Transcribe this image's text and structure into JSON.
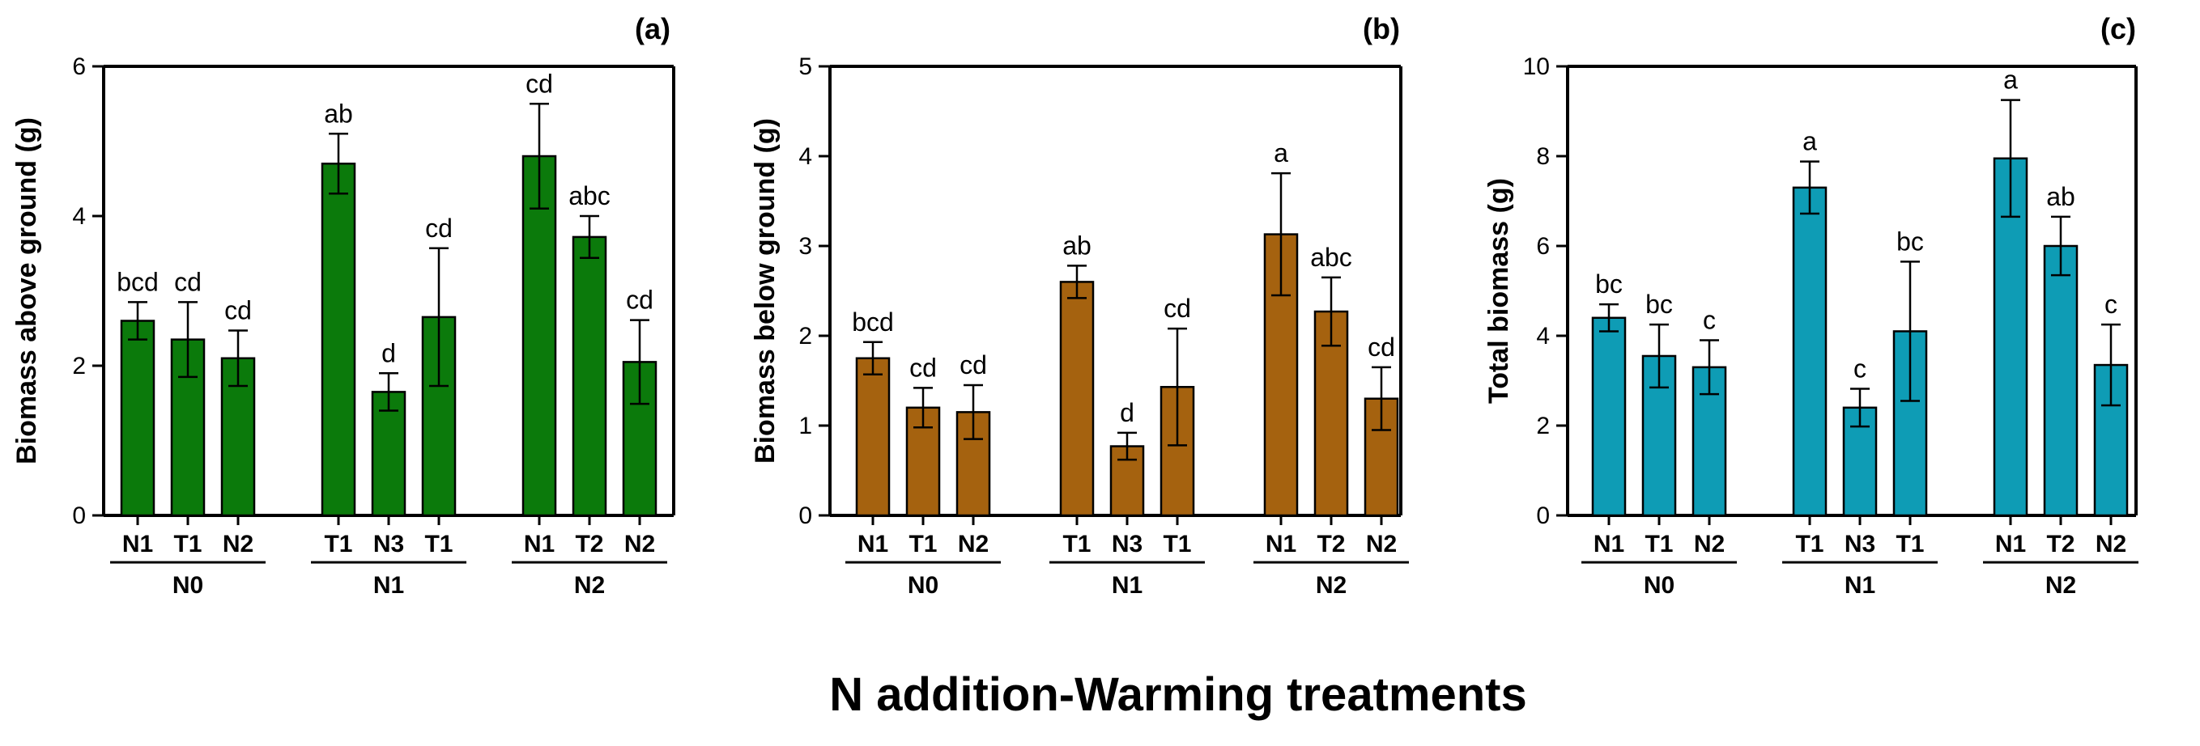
{
  "figure": {
    "xlabel": "N addition-Warming treatments"
  },
  "colors": {
    "panel_a": "#0b7a0b",
    "panel_b": "#a5620f",
    "panel_c": "#0e9cb5",
    "axis": "#000000"
  },
  "chart_data": [
    {
      "type": "bar",
      "panel_label": "(a)",
      "ylabel": "Biomass above ground (g)",
      "ylim": [
        0,
        6
      ],
      "yticks": [
        "0",
        "2",
        "4",
        "6"
      ],
      "groups": [
        "N0",
        "N1",
        "N2"
      ],
      "categories": [
        [
          "N1",
          "T1",
          "N2"
        ],
        [
          "T1",
          "N3",
          "T1"
        ],
        [
          "N1",
          "T2",
          "N2"
        ]
      ],
      "values": [
        [
          2.6,
          2.35,
          2.1
        ],
        [
          4.7,
          1.65,
          2.65
        ],
        [
          4.8,
          3.72,
          2.05
        ]
      ],
      "errors": [
        [
          0.25,
          0.5,
          0.37
        ],
        [
          0.4,
          0.25,
          0.92
        ],
        [
          0.7,
          0.28,
          0.56
        ]
      ],
      "letters": [
        [
          "bcd",
          "cd",
          "cd"
        ],
        [
          "ab",
          "d",
          "cd"
        ],
        [
          "cd",
          "abc",
          "cd"
        ]
      ]
    },
    {
      "type": "bar",
      "panel_label": "(b)",
      "ylabel": "Biomass below ground (g)",
      "ylim": [
        0,
        5
      ],
      "yticks": [
        "0",
        "1",
        "2",
        "3",
        "4",
        "5"
      ],
      "groups": [
        "N0",
        "N1",
        "N2"
      ],
      "categories": [
        [
          "N1",
          "T1",
          "N2"
        ],
        [
          "T1",
          "N3",
          "T1"
        ],
        [
          "N1",
          "T2",
          "N2"
        ]
      ],
      "values": [
        [
          1.75,
          1.2,
          1.15
        ],
        [
          2.6,
          0.77,
          1.43
        ],
        [
          3.13,
          2.27,
          1.3
        ]
      ],
      "errors": [
        [
          0.18,
          0.22,
          0.3
        ],
        [
          0.18,
          0.15,
          0.65
        ],
        [
          0.68,
          0.38,
          0.35
        ]
      ],
      "letters": [
        [
          "bcd",
          "cd",
          "cd"
        ],
        [
          "ab",
          "d",
          "cd"
        ],
        [
          "a",
          "abc",
          "cd"
        ]
      ]
    },
    {
      "type": "bar",
      "panel_label": "(c)",
      "ylabel": "Total biomass (g)",
      "ylim": [
        0,
        10
      ],
      "yticks": [
        "0",
        "2",
        "4",
        "6",
        "8",
        "10"
      ],
      "groups": [
        "N0",
        "N1",
        "N2"
      ],
      "categories": [
        [
          "N1",
          "T1",
          "N2"
        ],
        [
          "T1",
          "N3",
          "T1"
        ],
        [
          "N1",
          "T2",
          "N2"
        ]
      ],
      "values": [
        [
          4.4,
          3.55,
          3.3
        ],
        [
          7.3,
          2.4,
          4.1
        ],
        [
          7.95,
          6.0,
          3.35
        ]
      ],
      "errors": [
        [
          0.3,
          0.7,
          0.6
        ],
        [
          0.58,
          0.42,
          1.55
        ],
        [
          1.3,
          0.65,
          0.9
        ]
      ],
      "letters": [
        [
          "bc",
          "bc",
          "c"
        ],
        [
          "a",
          "c",
          "bc"
        ],
        [
          "a",
          "ab",
          "c"
        ]
      ]
    }
  ]
}
